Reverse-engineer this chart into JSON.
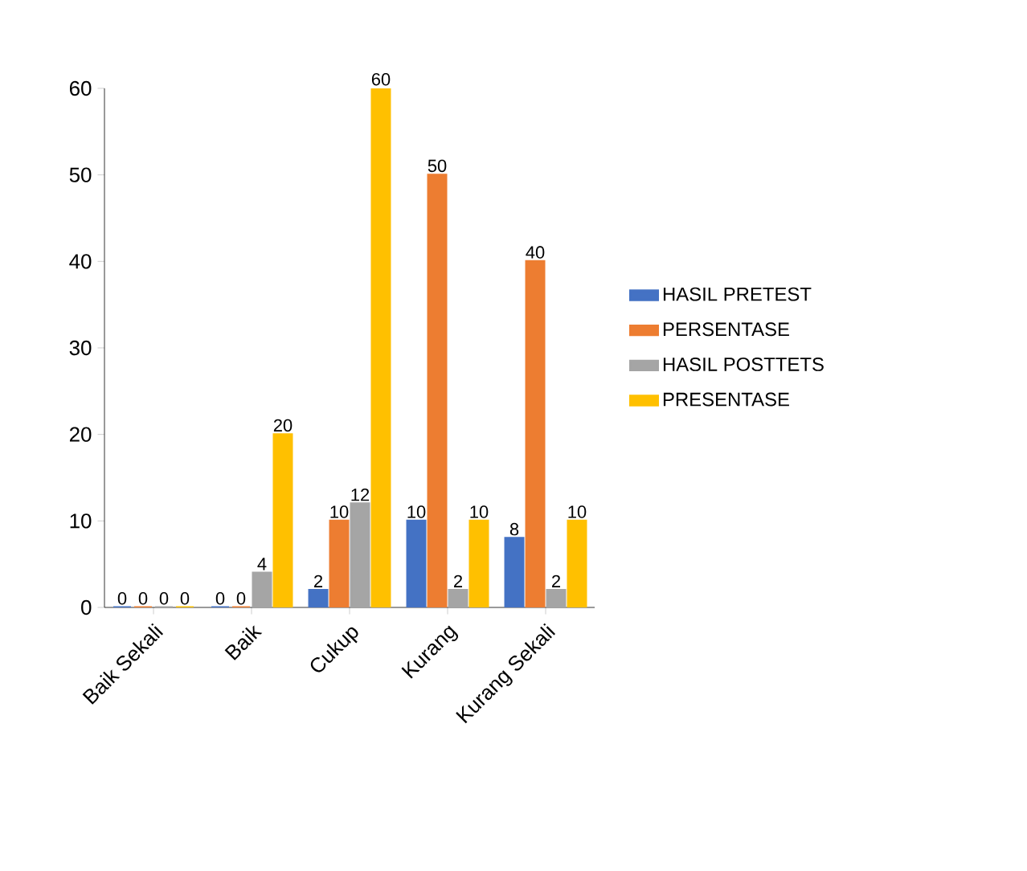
{
  "chart_data": {
    "type": "bar",
    "categories": [
      "Baik Sekali",
      "Baik",
      "Cukup",
      "Kurang",
      "Kurang Sekali"
    ],
    "series": [
      {
        "name": "HASIL PRETEST",
        "color": "#4472c4",
        "values": [
          0,
          0,
          2,
          10,
          8
        ]
      },
      {
        "name": "PERSENTASE",
        "color": "#ed7d31",
        "values": [
          0,
          0,
          10,
          50,
          40
        ]
      },
      {
        "name": "HASIL POSTTETS",
        "color": "#a5a5a5",
        "values": [
          0,
          4,
          12,
          2,
          2
        ]
      },
      {
        "name": "PRESENTASE",
        "color": "#ffc000",
        "values": [
          0,
          20,
          60,
          10,
          10
        ]
      }
    ],
    "ylim": [
      0,
      60
    ],
    "yticks": [
      0,
      10,
      20,
      30,
      40,
      50,
      60
    ],
    "data_labels": true,
    "legend": "right"
  }
}
